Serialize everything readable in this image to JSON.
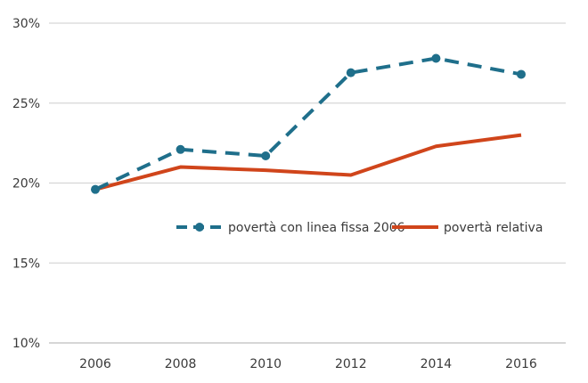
{
  "chart_data": {
    "type": "line",
    "x": [
      "2006",
      "2008",
      "2010",
      "2012",
      "2014",
      "2016"
    ],
    "y_ticks": [
      "10%",
      "15%",
      "20%",
      "25%",
      "30%"
    ],
    "ylim": [
      10,
      30
    ],
    "y_unit": "%",
    "grid": true,
    "legend_position": "center-right",
    "series": [
      {
        "name": "povertà con linea fissa 2006",
        "values": [
          19.6,
          22.1,
          21.7,
          26.9,
          27.8,
          26.8
        ],
        "color": "#1f6f8b",
        "style": "dashed-with-markers"
      },
      {
        "name": "povertà relativa",
        "values": [
          19.6,
          21.0,
          20.8,
          20.5,
          22.3,
          23.0
        ],
        "color": "#d0451b",
        "style": "solid"
      }
    ]
  }
}
